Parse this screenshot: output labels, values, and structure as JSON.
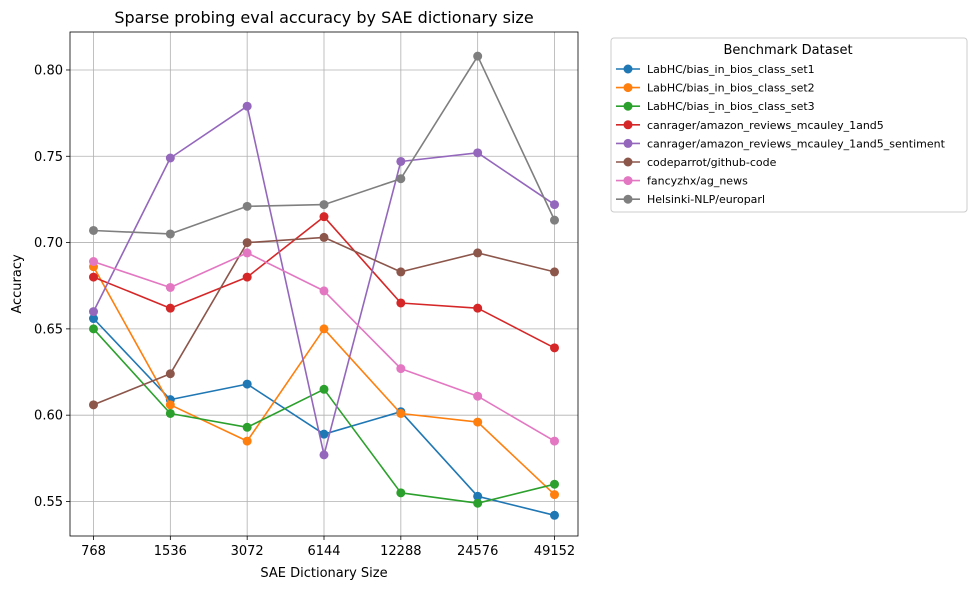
{
  "chart_data": {
    "type": "line",
    "title": "Sparse probing eval accuracy by SAE dictionary size",
    "xlabel": "SAE Dictionary Size",
    "ylabel": "Accuracy",
    "categories": [
      "768",
      "1536",
      "3072",
      "6144",
      "12288",
      "24576",
      "49152"
    ],
    "ylim": [
      0.53,
      0.822
    ],
    "yticks": [
      0.55,
      0.6,
      0.65,
      0.7,
      0.75,
      0.8
    ],
    "ytick_labels": [
      "0.55",
      "0.60",
      "0.65",
      "0.70",
      "0.75",
      "0.80"
    ],
    "grid": true,
    "legend_title": "Benchmark Dataset",
    "legend_position": "outside-top-right",
    "series": [
      {
        "name": "LabHC/bias_in_bios_class_set1",
        "color": "#1f77b4",
        "values": [
          0.656,
          0.609,
          0.618,
          0.589,
          0.602,
          0.553,
          0.542
        ]
      },
      {
        "name": "LabHC/bias_in_bios_class_set2",
        "color": "#ff7f0e",
        "values": [
          0.686,
          0.606,
          0.585,
          0.65,
          0.601,
          0.596,
          0.554
        ]
      },
      {
        "name": "LabHC/bias_in_bios_class_set3",
        "color": "#2ca02c",
        "values": [
          0.65,
          0.601,
          0.593,
          0.615,
          0.555,
          0.549,
          0.56
        ]
      },
      {
        "name": "canrager/amazon_reviews_mcauley_1and5",
        "color": "#d62728",
        "values": [
          0.68,
          0.662,
          0.68,
          0.715,
          0.665,
          0.662,
          0.639
        ]
      },
      {
        "name": "canrager/amazon_reviews_mcauley_1and5_sentiment",
        "color": "#9467bd",
        "values": [
          0.66,
          0.749,
          0.779,
          0.577,
          0.747,
          0.752,
          0.722
        ]
      },
      {
        "name": "codeparrot/github-code",
        "color": "#8c564b",
        "values": [
          0.606,
          0.624,
          0.7,
          0.703,
          0.683,
          0.694,
          0.683
        ]
      },
      {
        "name": "fancyzhx/ag_news",
        "color": "#e377c2",
        "values": [
          0.689,
          0.674,
          0.694,
          0.672,
          0.627,
          0.611,
          0.585
        ]
      },
      {
        "name": "Helsinki-NLP/europarl",
        "color": "#7f7f7f",
        "values": [
          0.707,
          0.705,
          0.721,
          0.722,
          0.737,
          0.808,
          0.713
        ]
      }
    ]
  }
}
